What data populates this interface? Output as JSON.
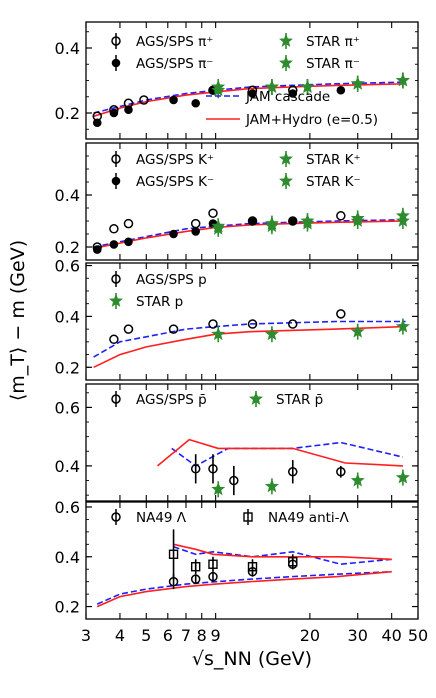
{
  "chart_data": {
    "type": "scatter",
    "ylabel": "⟨m_T⟩ − m (GeV)",
    "xlabel": "√s_NN (GeV)",
    "xscale": "log",
    "xlim": [
      3,
      50
    ],
    "x_ticks": [
      3,
      4,
      5,
      6,
      7,
      8,
      9,
      20,
      30,
      40,
      50
    ],
    "panels": [
      {
        "id": "pion",
        "ylim": [
          0.12,
          0.48
        ],
        "y_ticks": [
          0.2,
          0.4,
          0.6
        ],
        "legend": [
          {
            "label": "AGS/SPS π⁺",
            "marker": "open-circle"
          },
          {
            "label": "AGS/SPS π⁻",
            "marker": "filled-circle"
          },
          {
            "label": "STAR π⁺",
            "marker": "star-plus"
          },
          {
            "label": "STAR π⁻",
            "marker": "star-cross"
          },
          {
            "label": "JAM cascade",
            "marker": "dashed-line"
          },
          {
            "label": "JAM+Hydro (e=0.5)",
            "marker": "solid-line"
          }
        ],
        "series": [
          {
            "name": "AGS/SPS π⁺",
            "style": "open-circle",
            "x": [
              3.3,
              3.8,
              4.3,
              4.9,
              8.8,
              12.3,
              17.3
            ],
            "y": [
              0.19,
              0.21,
              0.23,
              0.24,
              0.27,
              0.27,
              0.27
            ]
          },
          {
            "name": "AGS/SPS π⁻",
            "style": "filled-circle",
            "x": [
              3.3,
              3.8,
              4.3,
              6.3,
              7.6,
              8.8,
              12.3,
              17.3,
              26
            ],
            "y": [
              0.17,
              0.2,
              0.21,
              0.24,
              0.23,
              0.27,
              0.26,
              0.26,
              0.27
            ]
          },
          {
            "name": "STAR π⁺",
            "style": "star-green",
            "x": [
              9.2,
              14.5,
              19.6,
              30,
              44
            ],
            "y": [
              0.28,
              0.28,
              0.28,
              0.29,
              0.3
            ]
          },
          {
            "name": "STAR π⁻",
            "style": "star-green",
            "x": [
              9.2,
              14.5,
              19.6,
              30,
              44
            ],
            "y": [
              0.27,
              0.28,
              0.28,
              0.29,
              0.3
            ]
          }
        ],
        "curves": [
          {
            "name": "JAM cascade",
            "style": "dashed",
            "x": [
              3.2,
              4,
              5,
              7,
              9,
              12,
              17,
              25,
              45
            ],
            "y": [
              0.2,
              0.22,
              0.24,
              0.26,
              0.27,
              0.28,
              0.285,
              0.29,
              0.295
            ]
          },
          {
            "name": "JAM+Hydro (e=0.5)",
            "style": "solid",
            "x": [
              3.2,
              4,
              5,
              7,
              9,
              12,
              17,
              25,
              45
            ],
            "y": [
              0.19,
              0.215,
              0.235,
              0.255,
              0.265,
              0.275,
              0.28,
              0.285,
              0.29
            ]
          }
        ]
      },
      {
        "id": "kaon",
        "ylim": [
          0.15,
          0.6
        ],
        "y_ticks": [
          0.2,
          0.4
        ],
        "legend": [
          {
            "label": "AGS/SPS K⁺",
            "marker": "open-circle"
          },
          {
            "label": "AGS/SPS K⁻",
            "marker": "filled-circle"
          },
          {
            "label": "STAR K⁺",
            "marker": "star-plus"
          },
          {
            "label": "STAR K⁻",
            "marker": "star-cross"
          }
        ],
        "series": [
          {
            "name": "AGS/SPS K⁺",
            "style": "open-circle",
            "x": [
              3.3,
              3.8,
              4.3,
              7.6,
              8.8,
              12.3,
              17.3,
              26
            ],
            "y": [
              0.2,
              0.27,
              0.29,
              0.29,
              0.33,
              0.3,
              0.3,
              0.32
            ]
          },
          {
            "name": "AGS/SPS K⁻",
            "style": "filled-circle",
            "x": [
              3.3,
              3.8,
              4.3,
              6.3,
              7.6,
              8.8,
              12.3,
              17.3
            ],
            "y": [
              0.19,
              0.21,
              0.22,
              0.25,
              0.26,
              0.29,
              0.3,
              0.3
            ]
          },
          {
            "name": "STAR K⁺",
            "style": "star-green",
            "x": [
              9.2,
              14.5,
              19.6,
              30,
              44
            ],
            "y": [
              0.28,
              0.29,
              0.3,
              0.31,
              0.32
            ]
          },
          {
            "name": "STAR K⁻",
            "style": "star-green",
            "x": [
              9.2,
              14.5,
              19.6,
              30,
              44
            ],
            "y": [
              0.27,
              0.28,
              0.29,
              0.3,
              0.3
            ]
          }
        ],
        "curves": [
          {
            "style": "dashed",
            "x": [
              3.2,
              4,
              5,
              7,
              9,
              12,
              17,
              25,
              45
            ],
            "y": [
              0.2,
              0.22,
              0.24,
              0.27,
              0.28,
              0.29,
              0.295,
              0.3,
              0.305
            ]
          },
          {
            "style": "solid",
            "x": [
              3.2,
              4,
              5,
              7,
              9,
              12,
              17,
              25,
              45
            ],
            "y": [
              0.195,
              0.215,
              0.235,
              0.26,
              0.275,
              0.285,
              0.29,
              0.295,
              0.3
            ]
          }
        ]
      },
      {
        "id": "proton",
        "ylim": [
          0.15,
          0.61
        ],
        "y_ticks": [
          0.2,
          0.4,
          0.6
        ],
        "legend": [
          {
            "label": "AGS/SPS p",
            "marker": "open-circle"
          },
          {
            "label": "STAR p",
            "marker": "star-plus"
          }
        ],
        "series": [
          {
            "name": "AGS/SPS p",
            "style": "open-circle",
            "x": [
              3.8,
              4.3,
              6.3,
              8.8,
              12.3,
              17.3,
              26
            ],
            "y": [
              0.31,
              0.35,
              0.35,
              0.37,
              0.37,
              0.37,
              0.41
            ]
          },
          {
            "name": "STAR p",
            "style": "star-green",
            "x": [
              9.2,
              14.5,
              30,
              44
            ],
            "y": [
              0.33,
              0.33,
              0.34,
              0.36
            ]
          }
        ],
        "curves": [
          {
            "style": "dashed",
            "x": [
              3.2,
              4,
              5,
              7,
              9,
              12,
              17,
              25,
              45
            ],
            "y": [
              0.24,
              0.3,
              0.32,
              0.35,
              0.36,
              0.37,
              0.375,
              0.38,
              0.38
            ]
          },
          {
            "style": "solid",
            "x": [
              3.2,
              4,
              5,
              7,
              9,
              12,
              17,
              25,
              45
            ],
            "y": [
              0.2,
              0.25,
              0.28,
              0.31,
              0.33,
              0.34,
              0.345,
              0.35,
              0.36
            ]
          }
        ]
      },
      {
        "id": "antiproton",
        "ylim": [
          0.28,
          0.68
        ],
        "y_ticks": [
          0.4,
          0.6
        ],
        "legend": [
          {
            "label": "AGS/SPS p̄",
            "marker": "open-circle"
          },
          {
            "label": "STAR p̄",
            "marker": "star-plus"
          }
        ],
        "series": [
          {
            "name": "AGS/SPS p̄",
            "style": "open-circle",
            "x": [
              7.6,
              8.8,
              10.5,
              17.3,
              26
            ],
            "y": [
              0.39,
              0.39,
              0.35,
              0.38,
              0.38
            ],
            "err": [
              0.05,
              0.05,
              0.05,
              0.04,
              0.02
            ]
          },
          {
            "name": "STAR p̄",
            "style": "star-green",
            "x": [
              9.2,
              14.5,
              30,
              44
            ],
            "y": [
              0.32,
              0.33,
              0.35,
              0.36
            ]
          }
        ],
        "curves": [
          {
            "style": "dashed",
            "x": [
              6.2,
              7.6,
              10,
              17.3,
              26,
              44
            ],
            "y": [
              0.46,
              0.4,
              0.46,
              0.46,
              0.48,
              0.43
            ]
          },
          {
            "style": "solid",
            "x": [
              5.5,
              7.2,
              9.2,
              11.5,
              17.3,
              27,
              44
            ],
            "y": [
              0.4,
              0.49,
              0.46,
              0.46,
              0.46,
              0.41,
              0.4
            ]
          }
        ]
      },
      {
        "id": "lambda",
        "ylim": [
          0.15,
          0.62
        ],
        "y_ticks": [
          0.2,
          0.4,
          0.6
        ],
        "legend": [
          {
            "label": "NA49 Λ",
            "marker": "open-circle"
          },
          {
            "label": "NA49 anti-Λ",
            "marker": "open-square"
          }
        ],
        "series": [
          {
            "name": "NA49 Λ",
            "style": "open-circle",
            "x": [
              6.3,
              7.6,
              8.8,
              12.3,
              17.3
            ],
            "y": [
              0.3,
              0.31,
              0.32,
              0.34,
              0.37
            ],
            "err": [
              0.03,
              0.02,
              0.02,
              0.02,
              0.02
            ]
          },
          {
            "name": "NA49 anti-Λ",
            "style": "open-square",
            "x": [
              6.3,
              7.6,
              8.8,
              12.3,
              17.3
            ],
            "y": [
              0.41,
              0.36,
              0.37,
              0.36,
              0.38
            ],
            "err": [
              0.1,
              0.03,
              0.03,
              0.03,
              0.03
            ]
          }
        ],
        "curves": [
          {
            "style": "dashed",
            "x": [
              3.3,
              4,
              5,
              7,
              9,
              12,
              17,
              25,
              40
            ],
            "y": [
              0.21,
              0.25,
              0.27,
              0.29,
              0.3,
              0.31,
              0.32,
              0.33,
              0.34
            ]
          },
          {
            "style": "solid",
            "x": [
              3.3,
              4,
              5,
              7,
              9,
              12,
              17,
              25,
              40
            ],
            "y": [
              0.2,
              0.24,
              0.26,
              0.28,
              0.29,
              0.3,
              0.31,
              0.32,
              0.34
            ]
          },
          {
            "style": "dashed",
            "x": [
              6.3,
              7.6,
              8.8,
              12.3,
              17.3,
              26,
              40
            ],
            "y": [
              0.44,
              0.41,
              0.42,
              0.4,
              0.42,
              0.37,
              0.39
            ]
          },
          {
            "style": "solid",
            "x": [
              6.3,
              7.6,
              8.8,
              12.3,
              17.3,
              26,
              40
            ],
            "y": [
              0.45,
              0.43,
              0.41,
              0.4,
              0.4,
              0.4,
              0.39
            ]
          }
        ]
      }
    ],
    "colors": {
      "dashed": "#1f1fff",
      "solid": "#ff1f1f",
      "star": "#2e8b2e",
      "marker": "#000000"
    }
  }
}
